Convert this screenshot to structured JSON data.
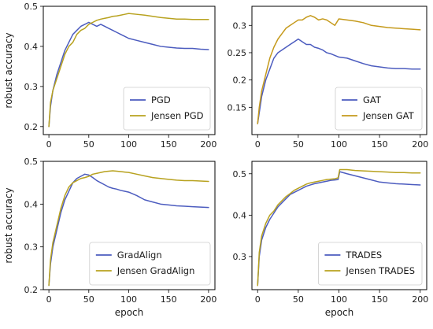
{
  "figure": {
    "background": "#ffffff"
  },
  "chart_data": [
    {
      "type": "line",
      "panel": "top-left",
      "xlabel": "",
      "ylabel": "robust accuracy",
      "xlim": [
        -7,
        208
      ],
      "ylim": [
        0.18,
        0.5
      ],
      "xticks": [
        0,
        50,
        100,
        150,
        200
      ],
      "yticks": [
        0.2,
        0.3,
        0.4,
        0.5
      ],
      "legend_loc": "lower right",
      "series": [
        {
          "name": "PGD",
          "color": "#4c5cbf",
          "x": [
            0,
            2,
            5,
            10,
            15,
            20,
            25,
            30,
            35,
            40,
            45,
            50,
            55,
            60,
            65,
            70,
            75,
            80,
            85,
            90,
            95,
            100,
            110,
            120,
            130,
            140,
            150,
            160,
            170,
            180,
            190,
            200
          ],
          "y": [
            0.2,
            0.25,
            0.29,
            0.33,
            0.36,
            0.39,
            0.41,
            0.43,
            0.44,
            0.45,
            0.455,
            0.46,
            0.455,
            0.45,
            0.455,
            0.45,
            0.445,
            0.44,
            0.435,
            0.43,
            0.425,
            0.42,
            0.415,
            0.41,
            0.405,
            0.4,
            0.398,
            0.396,
            0.395,
            0.395,
            0.393,
            0.392
          ]
        },
        {
          "name": "Jensen PGD",
          "color": "#b8a21f",
          "x": [
            0,
            2,
            5,
            10,
            15,
            20,
            25,
            30,
            35,
            40,
            45,
            50,
            55,
            60,
            65,
            70,
            75,
            80,
            85,
            90,
            95,
            100,
            110,
            120,
            130,
            140,
            150,
            160,
            170,
            180,
            190,
            200
          ],
          "y": [
            0.2,
            0.26,
            0.29,
            0.32,
            0.35,
            0.38,
            0.4,
            0.41,
            0.43,
            0.44,
            0.445,
            0.455,
            0.46,
            0.465,
            0.468,
            0.47,
            0.472,
            0.475,
            0.476,
            0.478,
            0.48,
            0.482,
            0.48,
            0.478,
            0.475,
            0.472,
            0.47,
            0.468,
            0.468,
            0.467,
            0.467,
            0.467
          ]
        }
      ]
    },
    {
      "type": "line",
      "panel": "top-right",
      "xlabel": "",
      "ylabel": "",
      "xlim": [
        -7,
        208
      ],
      "ylim": [
        0.1,
        0.335
      ],
      "xticks": [
        0,
        50,
        100,
        150,
        200
      ],
      "yticks": [
        0.15,
        0.2,
        0.25,
        0.3
      ],
      "legend_loc": "lower right",
      "series": [
        {
          "name": "GAT",
          "color": "#4c5cbf",
          "x": [
            0,
            2,
            5,
            10,
            15,
            20,
            25,
            30,
            35,
            40,
            45,
            50,
            55,
            60,
            65,
            70,
            75,
            80,
            85,
            90,
            95,
            100,
            110,
            120,
            130,
            140,
            150,
            160,
            170,
            180,
            190,
            200
          ],
          "y": [
            0.12,
            0.14,
            0.17,
            0.2,
            0.22,
            0.24,
            0.25,
            0.255,
            0.26,
            0.265,
            0.27,
            0.275,
            0.27,
            0.265,
            0.265,
            0.26,
            0.258,
            0.255,
            0.25,
            0.248,
            0.245,
            0.242,
            0.24,
            0.235,
            0.23,
            0.226,
            0.224,
            0.222,
            0.221,
            0.221,
            0.22,
            0.22
          ]
        },
        {
          "name": "Jensen GAT",
          "color": "#c59a1c",
          "x": [
            0,
            2,
            5,
            10,
            15,
            20,
            25,
            30,
            35,
            40,
            45,
            50,
            55,
            60,
            65,
            70,
            75,
            80,
            85,
            90,
            95,
            100,
            110,
            120,
            130,
            140,
            150,
            160,
            170,
            180,
            190,
            200
          ],
          "y": [
            0.12,
            0.15,
            0.18,
            0.21,
            0.24,
            0.26,
            0.275,
            0.285,
            0.295,
            0.3,
            0.305,
            0.31,
            0.31,
            0.315,
            0.318,
            0.315,
            0.31,
            0.312,
            0.31,
            0.305,
            0.3,
            0.312,
            0.31,
            0.308,
            0.305,
            0.3,
            0.298,
            0.296,
            0.295,
            0.294,
            0.293,
            0.292
          ]
        }
      ]
    },
    {
      "type": "line",
      "panel": "bottom-left",
      "xlabel": "epoch",
      "ylabel": "robust accuracy",
      "xlim": [
        -7,
        208
      ],
      "ylim": [
        0.2,
        0.5
      ],
      "xticks": [
        0,
        50,
        100,
        150,
        200
      ],
      "yticks": [
        0.2,
        0.3,
        0.4,
        0.5
      ],
      "legend_loc": "lower right",
      "series": [
        {
          "name": "GradAlign",
          "color": "#4c5cbf",
          "x": [
            0,
            2,
            5,
            10,
            15,
            20,
            25,
            30,
            35,
            40,
            45,
            50,
            55,
            60,
            65,
            70,
            75,
            80,
            85,
            90,
            95,
            100,
            110,
            120,
            130,
            140,
            150,
            160,
            170,
            180,
            190,
            200
          ],
          "y": [
            0.21,
            0.26,
            0.3,
            0.34,
            0.38,
            0.41,
            0.43,
            0.45,
            0.46,
            0.465,
            0.47,
            0.468,
            0.462,
            0.455,
            0.45,
            0.445,
            0.44,
            0.437,
            0.435,
            0.432,
            0.43,
            0.428,
            0.42,
            0.41,
            0.405,
            0.4,
            0.398,
            0.396,
            0.395,
            0.394,
            0.393,
            0.392
          ]
        },
        {
          "name": "Jensen GradAlign",
          "color": "#b8a21f",
          "x": [
            0,
            2,
            5,
            10,
            15,
            20,
            25,
            30,
            35,
            40,
            45,
            50,
            55,
            60,
            65,
            70,
            75,
            80,
            85,
            90,
            95,
            100,
            110,
            120,
            130,
            140,
            150,
            160,
            170,
            180,
            190,
            200
          ],
          "y": [
            0.21,
            0.27,
            0.31,
            0.35,
            0.39,
            0.42,
            0.44,
            0.45,
            0.455,
            0.46,
            0.462,
            0.465,
            0.47,
            0.472,
            0.474,
            0.476,
            0.477,
            0.478,
            0.477,
            0.476,
            0.475,
            0.474,
            0.47,
            0.466,
            0.462,
            0.46,
            0.458,
            0.456,
            0.455,
            0.455,
            0.454,
            0.453
          ]
        }
      ]
    },
    {
      "type": "line",
      "panel": "bottom-right",
      "xlabel": "epoch",
      "ylabel": "",
      "xlim": [
        -7,
        208
      ],
      "ylim": [
        0.22,
        0.53
      ],
      "xticks": [
        0,
        50,
        100,
        150,
        200
      ],
      "yticks": [
        0.3,
        0.4,
        0.5
      ],
      "legend_loc": "lower right",
      "series": [
        {
          "name": "TRADES",
          "color": "#4c5cbf",
          "x": [
            0,
            2,
            5,
            10,
            15,
            20,
            25,
            30,
            35,
            40,
            45,
            50,
            55,
            60,
            65,
            70,
            75,
            80,
            85,
            90,
            95,
            99,
            101,
            110,
            120,
            130,
            140,
            150,
            160,
            170,
            180,
            190,
            200
          ],
          "y": [
            0.23,
            0.3,
            0.34,
            0.37,
            0.39,
            0.405,
            0.42,
            0.43,
            0.44,
            0.45,
            0.455,
            0.46,
            0.465,
            0.47,
            0.473,
            0.476,
            0.478,
            0.48,
            0.482,
            0.484,
            0.485,
            0.486,
            0.505,
            0.5,
            0.495,
            0.49,
            0.485,
            0.48,
            0.478,
            0.476,
            0.475,
            0.474,
            0.473
          ]
        },
        {
          "name": "Jensen TRADES",
          "color": "#b8a21f",
          "x": [
            0,
            2,
            5,
            10,
            15,
            20,
            25,
            30,
            35,
            40,
            45,
            50,
            55,
            60,
            65,
            70,
            75,
            80,
            85,
            90,
            95,
            99,
            101,
            110,
            120,
            130,
            140,
            150,
            160,
            170,
            180,
            190,
            200
          ],
          "y": [
            0.23,
            0.31,
            0.35,
            0.38,
            0.4,
            0.41,
            0.425,
            0.435,
            0.445,
            0.452,
            0.46,
            0.465,
            0.47,
            0.475,
            0.478,
            0.48,
            0.482,
            0.484,
            0.486,
            0.487,
            0.488,
            0.49,
            0.51,
            0.51,
            0.508,
            0.507,
            0.506,
            0.505,
            0.504,
            0.503,
            0.503,
            0.502,
            0.502
          ]
        }
      ]
    }
  ]
}
